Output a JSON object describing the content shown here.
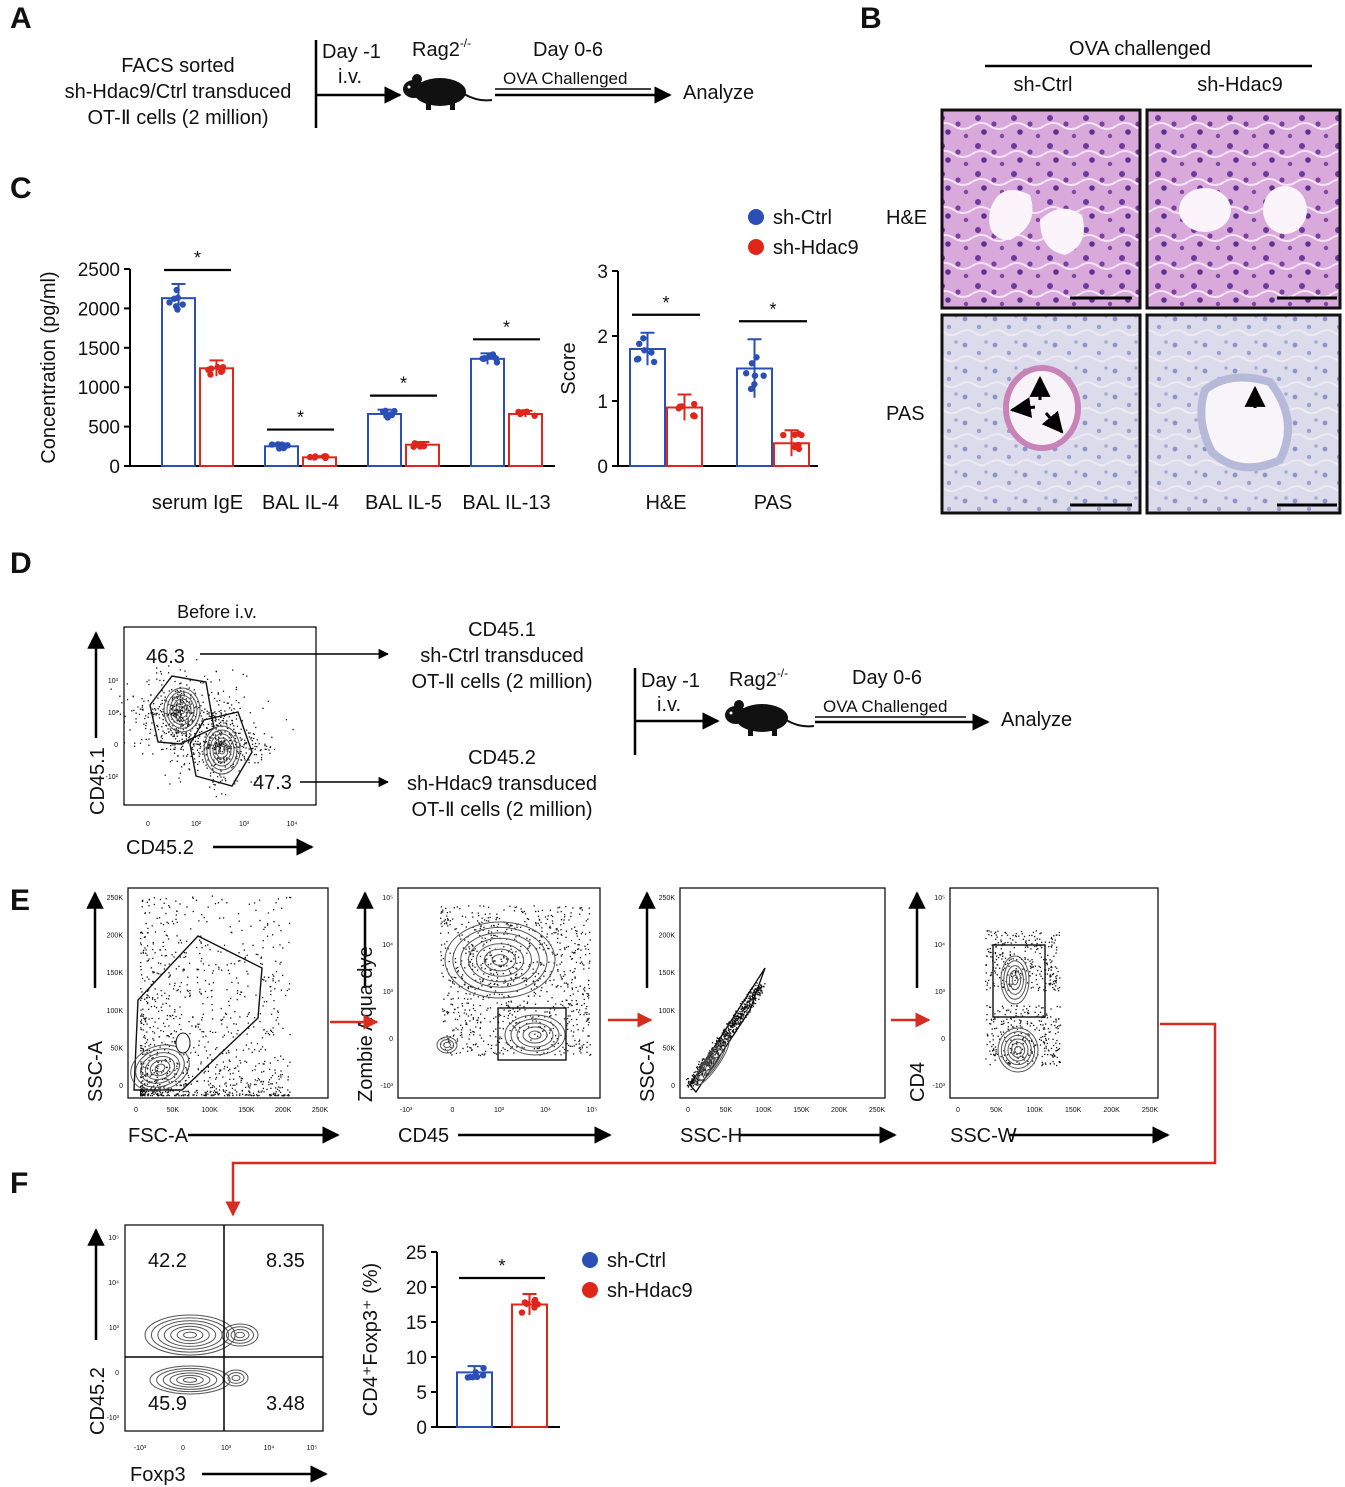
{
  "panels": {
    "a": "A",
    "b": "B",
    "c": "C",
    "d": "D",
    "e": "E",
    "f": "F"
  },
  "panel_a": {
    "sorted_text": [
      "FACS sorted",
      "sh-Hdac9/Ctrl transduced",
      "OT-Ⅱ cells (2 million)"
    ],
    "day_minus1": "Day -1",
    "iv": "i.v.",
    "mouse_label": "Rag2",
    "mouse_superscript": "-/-",
    "day06": "Day 0-6",
    "ova": "OVA Challenged",
    "analyze": "Analyze"
  },
  "panel_b": {
    "title": "OVA challenged",
    "col_ctrl": "sh-Ctrl",
    "col_hdac9": "sh-Hdac9",
    "row_he": "H&E",
    "row_pas": "PAS"
  },
  "legend": {
    "ctrl": "sh-Ctrl",
    "hdac9": "sh-Hdac9"
  },
  "colors": {
    "ctrl": "#2a4fb5",
    "hdac9": "#e0261b",
    "arrow": "#d62d20"
  },
  "panel_d": {
    "before": "Before i.v.",
    "gate1": "46.3",
    "gate2": "47.3",
    "yaxis": "CD45.1",
    "xaxis": "CD45.2",
    "xticks": [
      "0",
      "10²",
      "10³",
      "10⁴"
    ],
    "yticks": [
      "10³",
      "10²",
      "0",
      "-10²"
    ],
    "top_cells": [
      "CD45.1",
      "sh-Ctrl transduced",
      "OT-Ⅱ cells (2 million)"
    ],
    "bottom_cells": [
      "CD45.2",
      "sh-Hdac9 transduced",
      "OT-Ⅱ cells (2 million)"
    ],
    "day_minus1": "Day -1",
    "iv": "i.v.",
    "mouse_label": "Rag2",
    "mouse_superscript": "-/-",
    "day06": "Day 0-6",
    "ova": "OVA Challenged",
    "analyze": "Analyze"
  },
  "panel_e": {
    "plots": [
      {
        "x": "FSC-A",
        "y": "SSC-A",
        "xticks": [
          "0",
          "50K",
          "100K",
          "150K",
          "200K",
          "250K"
        ],
        "yticks": [
          "250K",
          "200K",
          "150K",
          "100K",
          "50K",
          "0"
        ]
      },
      {
        "x": "CD45",
        "y": "Zombie Aqua dye",
        "xticks": [
          "-10³",
          "0",
          "10³",
          "10⁴",
          "10⁵"
        ],
        "yticks": [
          "10⁵",
          "10⁴",
          "10³",
          "0",
          "-10³"
        ]
      },
      {
        "x": "SSC-H",
        "y": "SSC-A",
        "xticks": [
          "0",
          "50K",
          "100K",
          "150K",
          "200K",
          "250K"
        ],
        "yticks": [
          "250K",
          "200K",
          "150K",
          "100K",
          "50K",
          "0"
        ]
      },
      {
        "x": "SSC-W",
        "y": "CD4",
        "xticks": [
          "0",
          "50K",
          "100K",
          "150K",
          "200K",
          "250K"
        ],
        "yticks": [
          "10⁵",
          "10⁴",
          "10³",
          "0",
          "-10³"
        ]
      }
    ]
  },
  "panel_f": {
    "quadrants": [
      "42.2",
      "8.35",
      "45.9",
      "3.48"
    ],
    "yaxis": "CD45.2",
    "xaxis": "Foxp3",
    "xticks": [
      "-10³",
      "0",
      "10³",
      "10⁴",
      "10⁵"
    ],
    "yticks": [
      "10⁵",
      "10⁴",
      "10³",
      "0",
      "-10³"
    ]
  },
  "chart_data": [
    {
      "type": "bar",
      "categories": [
        "serum IgE",
        "BAL IL-4",
        "BAL IL-5",
        "BAL IL-13"
      ],
      "series": [
        {
          "name": "sh-Ctrl",
          "values": [
            2130,
            250,
            660,
            1360
          ],
          "errors": [
            180,
            35,
            55,
            70
          ]
        },
        {
          "name": "sh-Hdac9",
          "values": [
            1240,
            110,
            270,
            660
          ],
          "errors": [
            100,
            15,
            35,
            40
          ]
        }
      ],
      "significance": [
        "*",
        "*",
        "*",
        "*"
      ],
      "ylabel": "Concentration (pg/ml)",
      "ylim": [
        0,
        2500
      ],
      "yticks": [
        "0",
        "500",
        "1000",
        "1500",
        "2000",
        "2500"
      ]
    },
    {
      "type": "bar",
      "categories": [
        "H&E",
        "PAS"
      ],
      "series": [
        {
          "name": "sh-Ctrl",
          "values": [
            1.8,
            1.5
          ],
          "errors": [
            0.25,
            0.45
          ]
        },
        {
          "name": "sh-Hdac9",
          "values": [
            0.9,
            0.35
          ],
          "errors": [
            0.2,
            0.2
          ]
        }
      ],
      "significance": [
        "*",
        "*"
      ],
      "ylabel": "Score",
      "ylim": [
        0,
        3
      ],
      "yticks": [
        "0",
        "1",
        "2",
        "3"
      ]
    },
    {
      "type": "bar",
      "categories": [
        ""
      ],
      "series": [
        {
          "name": "sh-Ctrl",
          "values": [
            7.8
          ],
          "errors": [
            0.9
          ]
        },
        {
          "name": "sh-Hdac9",
          "values": [
            17.5
          ],
          "errors": [
            1.5
          ]
        }
      ],
      "significance": [
        "*"
      ],
      "ylabel": "CD4⁺Foxp3⁺ (%)",
      "ylim": [
        0,
        25
      ],
      "yticks": [
        "0",
        "5",
        "10",
        "15",
        "20",
        "25"
      ]
    }
  ]
}
